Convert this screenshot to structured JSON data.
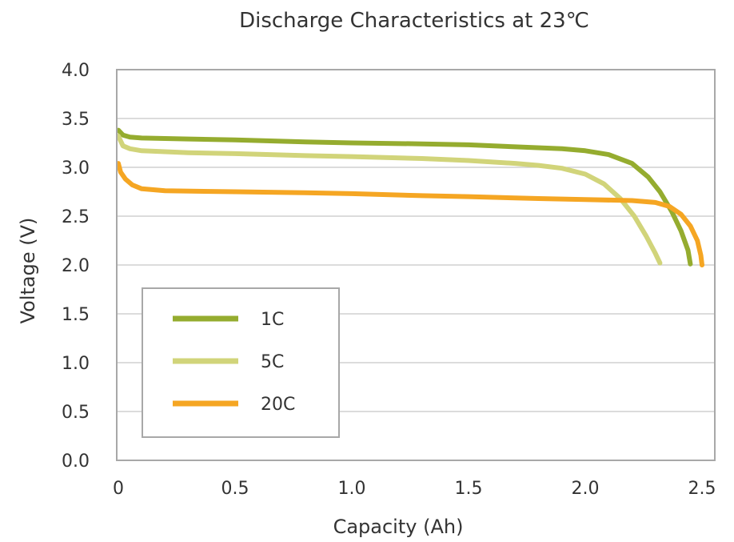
{
  "chart_data": {
    "type": "line",
    "title": "Discharge Characteristics at 23℃",
    "xlabel": "Capacity (Ah)",
    "ylabel": "Voltage (V)",
    "xlim": [
      0,
      2.5
    ],
    "ylim": [
      0,
      4.0
    ],
    "x_ticks": [
      "0",
      "0.5",
      "1.0",
      "1.5",
      "2.0",
      "2.5"
    ],
    "y_ticks": [
      "0.0",
      "0.5",
      "1.0",
      "1.5",
      "2.0",
      "2.5",
      "3.0",
      "3.5",
      "4.0"
    ],
    "grid": "horizontal",
    "legend_position": "bottom-left",
    "series": [
      {
        "name": "1C",
        "color": "#95ac2f",
        "points": [
          [
            0.0,
            3.38
          ],
          [
            0.02,
            3.33
          ],
          [
            0.05,
            3.31
          ],
          [
            0.1,
            3.3
          ],
          [
            0.3,
            3.29
          ],
          [
            0.5,
            3.28
          ],
          [
            0.8,
            3.26
          ],
          [
            1.0,
            3.25
          ],
          [
            1.3,
            3.24
          ],
          [
            1.5,
            3.23
          ],
          [
            1.7,
            3.21
          ],
          [
            1.9,
            3.19
          ],
          [
            2.0,
            3.17
          ],
          [
            2.1,
            3.13
          ],
          [
            2.2,
            3.04
          ],
          [
            2.27,
            2.9
          ],
          [
            2.32,
            2.75
          ],
          [
            2.37,
            2.55
          ],
          [
            2.41,
            2.35
          ],
          [
            2.44,
            2.15
          ],
          [
            2.45,
            2.01
          ]
        ]
      },
      {
        "name": "5C",
        "color": "#d1d47a",
        "points": [
          [
            0.0,
            3.32
          ],
          [
            0.02,
            3.22
          ],
          [
            0.05,
            3.19
          ],
          [
            0.1,
            3.17
          ],
          [
            0.3,
            3.15
          ],
          [
            0.5,
            3.14
          ],
          [
            0.8,
            3.12
          ],
          [
            1.0,
            3.11
          ],
          [
            1.3,
            3.09
          ],
          [
            1.5,
            3.07
          ],
          [
            1.7,
            3.04
          ],
          [
            1.8,
            3.02
          ],
          [
            1.9,
            2.99
          ],
          [
            2.0,
            2.93
          ],
          [
            2.08,
            2.83
          ],
          [
            2.15,
            2.68
          ],
          [
            2.21,
            2.5
          ],
          [
            2.26,
            2.3
          ],
          [
            2.3,
            2.12
          ],
          [
            2.32,
            2.02
          ]
        ]
      },
      {
        "name": "20C",
        "color": "#f5a623",
        "points": [
          [
            0.0,
            3.04
          ],
          [
            0.01,
            2.95
          ],
          [
            0.03,
            2.88
          ],
          [
            0.06,
            2.82
          ],
          [
            0.1,
            2.78
          ],
          [
            0.2,
            2.76
          ],
          [
            0.5,
            2.75
          ],
          [
            0.8,
            2.74
          ],
          [
            1.0,
            2.73
          ],
          [
            1.3,
            2.71
          ],
          [
            1.5,
            2.7
          ],
          [
            1.8,
            2.68
          ],
          [
            2.0,
            2.67
          ],
          [
            2.2,
            2.66
          ],
          [
            2.3,
            2.64
          ],
          [
            2.36,
            2.6
          ],
          [
            2.41,
            2.52
          ],
          [
            2.45,
            2.4
          ],
          [
            2.48,
            2.25
          ],
          [
            2.495,
            2.1
          ],
          [
            2.5,
            2.0
          ]
        ]
      }
    ]
  }
}
